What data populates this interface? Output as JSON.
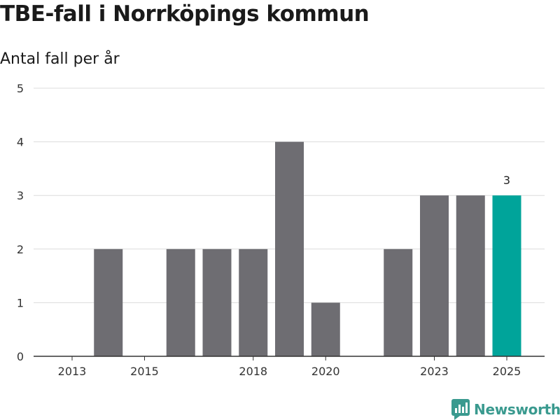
{
  "header": {
    "title": "TBE-fall i Norrköpings kommun",
    "subtitle": "Antal fall per år"
  },
  "brand": {
    "name": "Newsworthy",
    "color": "#3a9a8f"
  },
  "colors": {
    "bar": "#6e6d72",
    "highlight": "#00a49a",
    "grid": "#dcdcdc",
    "axis": "#333333"
  },
  "chart_data": {
    "type": "bar",
    "title": "TBE-fall i Norrköpings kommun",
    "subtitle": "Antal fall per år",
    "xlabel": "",
    "ylabel": "",
    "categories": [
      2013,
      2014,
      2015,
      2016,
      2017,
      2018,
      2019,
      2020,
      2021,
      2022,
      2023,
      2024,
      2025
    ],
    "values": [
      0,
      2,
      0,
      2,
      2,
      2,
      4,
      1,
      0,
      2,
      3,
      3,
      3
    ],
    "highlight_category": 2025,
    "data_labels": [
      {
        "category": 2025,
        "text": "3"
      }
    ],
    "x_tick_labels": [
      "2013",
      "2015",
      "2018",
      "2020",
      "2023",
      "2025"
    ],
    "y_ticks": [
      0,
      1,
      2,
      3,
      4,
      5
    ],
    "ylim": [
      0,
      5
    ],
    "grid": true,
    "legend": "none"
  }
}
